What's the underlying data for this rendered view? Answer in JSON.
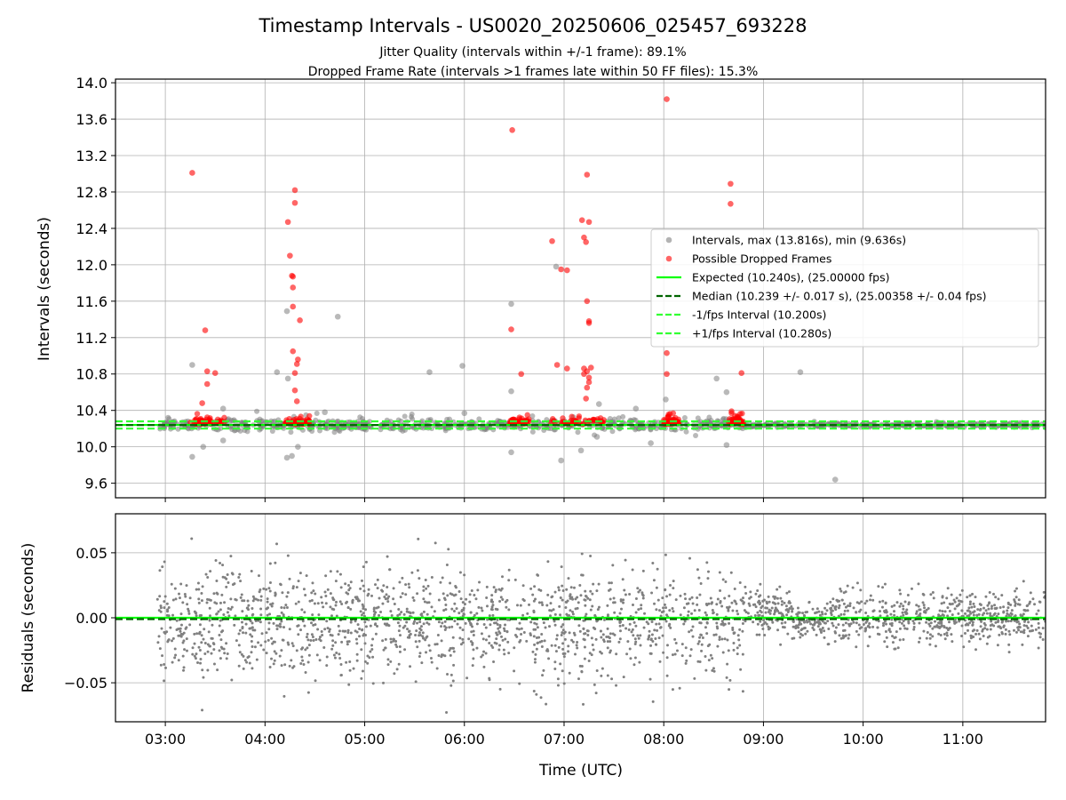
{
  "chart_data": [
    {
      "type": "scatter",
      "title": "Timestamp Intervals - US0020_20250606_025457_693228",
      "subtitle": [
        "Jitter Quality (intervals within +/-1 frame): 89.1%",
        "Dropped Frame Rate (intervals >1 frames late within 50 FF files): 15.3%"
      ],
      "xlabel": "",
      "ylabel": "Intervals (seconds)",
      "x_unit": "hours (UTC)",
      "xlim": [
        2.5,
        11.83
      ],
      "ylim": [
        9.44,
        14.04
      ],
      "yticks": [
        9.6,
        10.0,
        10.4,
        10.8,
        11.2,
        11.6,
        12.0,
        12.4,
        12.8,
        13.2,
        13.6,
        14.0
      ],
      "ytick_labels": [
        "9.6",
        "10.0",
        "10.4",
        "10.8",
        "11.2",
        "11.6",
        "12.0",
        "12.4",
        "12.8",
        "13.2",
        "13.6",
        "14.0"
      ],
      "grid": true,
      "legend_position": "center-right",
      "series": [
        {
          "name": "Intervals, max (13.816s), min (9.636s)",
          "kind": "scatter",
          "color": "#808080",
          "points": [
            [
              3.27,
              10.9
            ],
            [
              3.27,
              9.89
            ],
            [
              3.38,
              10.0
            ],
            [
              3.58,
              10.42
            ],
            [
              3.58,
              10.07
            ],
            [
              4.12,
              10.82
            ],
            [
              4.22,
              11.49
            ],
            [
              4.23,
              10.75
            ],
            [
              4.22,
              9.88
            ],
            [
              4.27,
              9.9
            ],
            [
              4.33,
              10.0
            ],
            [
              4.6,
              10.38
            ],
            [
              4.73,
              11.43
            ],
            [
              5.65,
              10.82
            ],
            [
              5.98,
              10.89
            ],
            [
              6.0,
              10.37
            ],
            [
              6.47,
              11.57
            ],
            [
              6.47,
              10.61
            ],
            [
              6.47,
              9.94
            ],
            [
              6.92,
              11.98
            ],
            [
              6.97,
              9.85
            ],
            [
              7.17,
              9.96
            ],
            [
              7.35,
              10.47
            ],
            [
              7.33,
              10.11
            ],
            [
              7.72,
              10.42
            ],
            [
              7.87,
              10.04
            ],
            [
              8.02,
              10.52
            ],
            [
              8.53,
              10.75
            ],
            [
              8.63,
              10.6
            ],
            [
              8.63,
              10.02
            ],
            [
              9.37,
              10.82
            ],
            [
              9.72,
              9.64
            ]
          ]
        },
        {
          "name": "Possible Dropped Frames",
          "kind": "scatter",
          "color": "#ff0000",
          "points": [
            [
              3.27,
              13.01
            ],
            [
              3.37,
              10.48
            ],
            [
              3.4,
              11.28
            ],
            [
              3.42,
              10.83
            ],
            [
              3.42,
              10.69
            ],
            [
              3.5,
              10.81
            ],
            [
              4.23,
              12.47
            ],
            [
              4.25,
              12.1
            ],
            [
              4.27,
              11.88
            ],
            [
              4.28,
              11.87
            ],
            [
              4.28,
              11.75
            ],
            [
              4.3,
              12.82
            ],
            [
              4.3,
              12.68
            ],
            [
              4.28,
              11.54
            ],
            [
              4.35,
              11.39
            ],
            [
              4.28,
              11.05
            ],
            [
              4.3,
              10.81
            ],
            [
              4.32,
              10.91
            ],
            [
              4.33,
              10.96
            ],
            [
              4.3,
              10.62
            ],
            [
              4.32,
              10.5
            ],
            [
              6.48,
              13.48
            ],
            [
              6.47,
              11.29
            ],
            [
              6.57,
              10.8
            ],
            [
              6.88,
              12.26
            ],
            [
              6.93,
              10.9
            ],
            [
              6.97,
              11.95
            ],
            [
              7.03,
              11.94
            ],
            [
              7.03,
              10.86
            ],
            [
              7.18,
              12.49
            ],
            [
              7.2,
              12.3
            ],
            [
              7.22,
              12.25
            ],
            [
              7.25,
              12.47
            ],
            [
              7.23,
              12.99
            ],
            [
              7.2,
              10.86
            ],
            [
              7.2,
              10.8
            ],
            [
              7.23,
              11.6
            ],
            [
              7.25,
              11.38
            ],
            [
              7.25,
              11.36
            ],
            [
              7.25,
              10.76
            ],
            [
              7.25,
              10.71
            ],
            [
              7.27,
              10.87
            ],
            [
              7.23,
              10.65
            ],
            [
              7.22,
              10.53
            ],
            [
              7.23,
              10.83
            ],
            [
              8.03,
              13.82
            ],
            [
              8.03,
              11.03
            ],
            [
              8.03,
              10.8
            ],
            [
              8.67,
              12.89
            ],
            [
              8.67,
              12.67
            ],
            [
              8.68,
              10.39
            ],
            [
              8.68,
              10.37
            ],
            [
              8.78,
              10.81
            ]
          ]
        },
        {
          "name": "Expected (10.240s), (25.00000 fps)",
          "kind": "hline",
          "y": 10.24,
          "color": "#00ff00",
          "style": "solid"
        },
        {
          "name": "Median (10.239 +/- 0.017 s), (25.00358 +/- 0.04 fps)",
          "kind": "hline",
          "y": 10.239,
          "color": "#006400",
          "style": "dashed"
        },
        {
          "name": "-1/fps Interval (10.200s)",
          "kind": "hline",
          "y": 10.2,
          "color": "#33ff33",
          "style": "dashed"
        },
        {
          "name": "+1/fps Interval (10.280s)",
          "kind": "hline",
          "y": 10.28,
          "color": "#33ff33",
          "style": "dashed"
        }
      ]
    },
    {
      "type": "scatter",
      "title": "",
      "xlabel": "Time (UTC)",
      "ylabel": "Residuals (seconds)",
      "x_unit": "hours (UTC)",
      "xlim": [
        2.5,
        11.83
      ],
      "ylim": [
        -0.08,
        0.08
      ],
      "xticks": [
        3,
        4,
        5,
        6,
        7,
        8,
        9,
        10,
        11
      ],
      "xtick_labels": [
        "03:00",
        "04:00",
        "05:00",
        "06:00",
        "07:00",
        "08:00",
        "09:00",
        "10:00",
        "11:00"
      ],
      "yticks": [
        -0.05,
        0.0,
        0.05
      ],
      "ytick_labels": [
        "−0.05",
        "0.00",
        "0.05"
      ],
      "grid": true,
      "residual_color": "#808080",
      "residual_spread": [
        {
          "from": 2.92,
          "to": 8.8,
          "std": 0.021,
          "mean": -0.003
        },
        {
          "from": 8.8,
          "to": 9.3,
          "std": 0.008,
          "mean": 0.005
        },
        {
          "from": 9.3,
          "to": 9.67,
          "std": 0.006,
          "mean": -0.004
        },
        {
          "from": 9.67,
          "to": 10.0,
          "std": 0.012,
          "mean": 0.003
        },
        {
          "from": 10.0,
          "to": 11.83,
          "std": 0.01,
          "mean": 0.0
        }
      ],
      "series": [
        {
          "name": "Expected",
          "kind": "hline",
          "y": 0.0,
          "color": "#00ff00",
          "style": "solid"
        },
        {
          "name": "Median",
          "kind": "hline",
          "y": -0.001,
          "color": "#006400",
          "style": "dashed"
        }
      ]
    }
  ]
}
